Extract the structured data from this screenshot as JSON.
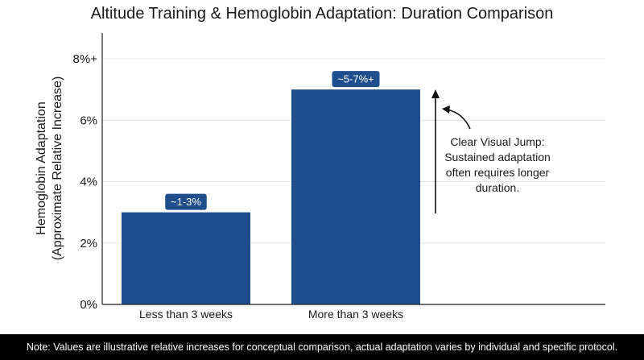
{
  "chart_data": {
    "type": "bar",
    "title": "Altitude Training & Hemoglobin Adaptation: Duration Comparison",
    "xlabel": "",
    "ylabel_line1": "Hemoglobin Adaptation",
    "ylabel_line2": "(Approximate Relative Increase)",
    "categories": [
      "Less than 3 weeks",
      "More than 3 weeks"
    ],
    "values": [
      3,
      7
    ],
    "data_labels": [
      "~1-3%",
      "~5-7%+"
    ],
    "ylim": [
      0,
      8
    ],
    "y_ticks": [
      0,
      2,
      4,
      6,
      8
    ],
    "y_tick_labels": [
      "0%",
      "2%",
      "4%",
      "6%",
      "8%+"
    ],
    "grid": true,
    "annotation": "Clear Visual Jump: Sustained adaptation often requires longer duration.",
    "bar_color": "#1f4e8c",
    "label_bg_color": "#1f4e8c"
  },
  "footer_note": "Note: Values are illustrative relative increases for conceptual comparison, actual adaptation varies by individual and specific protocol."
}
